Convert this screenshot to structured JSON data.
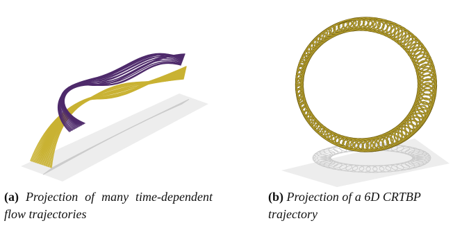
{
  "figures": [
    {
      "id": "(a)",
      "caption": "Projection of many time-dependent flow trajectories",
      "colors": {
        "tube_primary": "#c9b233",
        "tube_secondary": "#4e2a6b",
        "shadow": "#c7c7c7",
        "floor": "#ededed"
      }
    },
    {
      "id": "(b)",
      "caption": "Projection of a 6D CRTBP trajectory",
      "colors": {
        "tube_primary": "#c2ab33",
        "tube_edge": "#6b5a12",
        "shadow": "#c9c9c9",
        "floor": "#ededed"
      }
    }
  ]
}
